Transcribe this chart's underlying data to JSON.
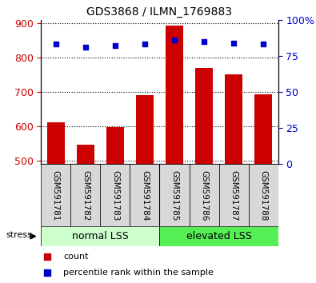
{
  "title": "GDS3868 / ILMN_1769883",
  "categories": [
    "GSM591781",
    "GSM591782",
    "GSM591783",
    "GSM591784",
    "GSM591785",
    "GSM591786",
    "GSM591787",
    "GSM591788"
  ],
  "bar_values": [
    612,
    547,
    597,
    690,
    893,
    769,
    752,
    692
  ],
  "percentile_values": [
    83,
    81,
    82,
    83,
    86,
    85,
    84,
    83
  ],
  "ylim_left": [
    490,
    910
  ],
  "ylim_right": [
    0,
    100
  ],
  "yticks_left": [
    500,
    600,
    700,
    800,
    900
  ],
  "yticks_right": [
    0,
    25,
    50,
    75,
    100
  ],
  "bar_color": "#cc0000",
  "dot_color": "#0000cc",
  "grid_color": "#000000",
  "bar_bottom": 490,
  "group_labels": [
    "normal LSS",
    "elevated LSS"
  ],
  "group_split": 4,
  "group_colors": [
    "#ccffcc",
    "#55ee55"
  ],
  "stress_label": "stress",
  "legend_items": [
    "count",
    "percentile rank within the sample"
  ],
  "legend_colors": [
    "#cc0000",
    "#0000cc"
  ],
  "left_tick_color": "#cc0000",
  "right_tick_color": "#0000cc",
  "figsize": [
    3.95,
    3.54
  ],
  "dpi": 100
}
